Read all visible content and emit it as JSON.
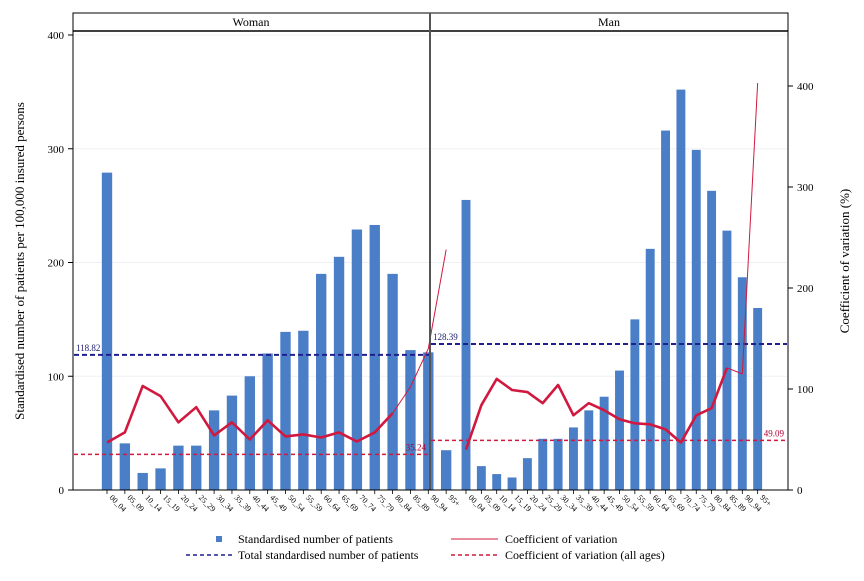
{
  "chart_data": {
    "type": "bar",
    "ylabel_left": "Standardised number of patients per 100,000 insured persons",
    "ylabel_right": "Coefficient of variation (%)",
    "ylim_left": [
      0,
      400
    ],
    "ylim_right": [
      0,
      460
    ],
    "yticks_left": [
      "0",
      "100",
      "200",
      "300",
      "400"
    ],
    "yticks_right": [
      "0",
      "100",
      "200",
      "300",
      "400"
    ],
    "categories": [
      "00_04",
      "05_09",
      "10_14",
      "15_19",
      "20_24",
      "25_29",
      "30_34",
      "35_39",
      "40_44",
      "45_49",
      "50_54",
      "55_59",
      "60_64",
      "65_69",
      "70_74",
      "75_79",
      "80_84",
      "85_89",
      "90_94",
      "95+"
    ],
    "colors": {
      "bars": "#4a7ec7",
      "cv": "#d1193f",
      "total_ref": "#1f1f8f",
      "cv_ref": "#d1193f"
    },
    "panels": [
      {
        "title": "Woman",
        "bars": [
          279,
          41,
          15,
          19,
          39,
          39,
          70,
          83,
          100,
          120,
          139,
          140,
          190,
          205,
          229,
          233,
          190,
          123,
          121,
          35
        ],
        "cv": [
          47,
          57,
          103,
          93,
          67,
          82,
          54,
          67,
          50,
          69,
          53,
          55,
          52,
          57,
          48,
          57,
          76,
          102,
          140,
          238
        ],
        "total_ref": 118.82,
        "total_ref_label": "118.82",
        "cv_ref": 35.24,
        "cv_ref_label": "35.24"
      },
      {
        "title": "Man",
        "bars": [
          255,
          21,
          14,
          11,
          28,
          45,
          45,
          55,
          70,
          82,
          105,
          150,
          212,
          316,
          352,
          299,
          263,
          228,
          187,
          160
        ],
        "cv": [
          40,
          84,
          110,
          99,
          97,
          86,
          104,
          74,
          86,
          79,
          70,
          66,
          65,
          60,
          47,
          74,
          81,
          121,
          115,
          403
        ],
        "total_ref": 128.39,
        "total_ref_label": "128.39",
        "cv_ref": 49.09,
        "cv_ref_label": "49.09"
      }
    ],
    "legend": [
      {
        "label": "Standardised number of patients",
        "kind": "marker"
      },
      {
        "label": "Coefficient of variation",
        "kind": "line"
      },
      {
        "label": "Total standardised number of patients",
        "kind": "dash-blue"
      },
      {
        "label": "Coefficient of variation (all ages)",
        "kind": "dash-red"
      }
    ]
  }
}
